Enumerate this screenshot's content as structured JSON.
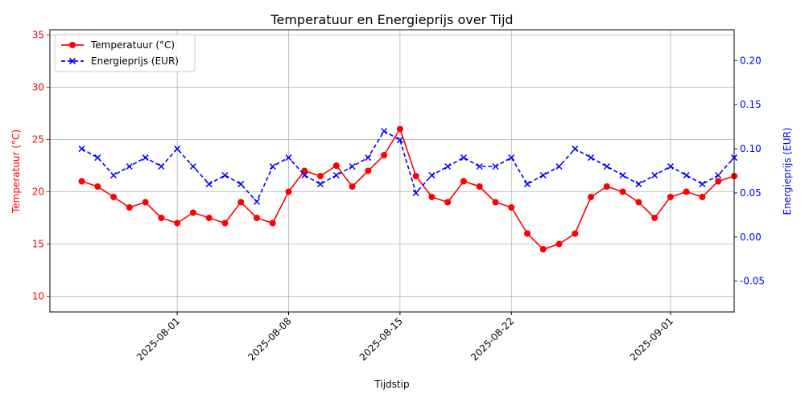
{
  "chart_data": {
    "type": "line",
    "title": "Temperatuur en Energieprijs over Tijd",
    "xlabel": "Tijdstip",
    "ylabel_left": "Temperatuur (°C)",
    "ylabel_right": "Energieprijs (EUR)",
    "x_range": [
      "2025-07-24",
      "2025-09-05"
    ],
    "x_ticks": [
      "2025-08-01",
      "2025-08-08",
      "2025-08-15",
      "2025-08-22",
      "2025-09-01"
    ],
    "ylim_left": [
      8.5,
      35.5
    ],
    "yticks_left": [
      10,
      15,
      20,
      25,
      30,
      35
    ],
    "ylim_right": [
      -0.085,
      0.235
    ],
    "yticks_right": [
      -0.05,
      0.0,
      0.05,
      0.1,
      0.15,
      0.2
    ],
    "grid": true,
    "legend_position": "top-left",
    "colors": {
      "temperature": "#ff0000",
      "price": "#0000ff",
      "grid": "#b0b0b0"
    },
    "series": [
      {
        "name": "Temperatuur (°C)",
        "axis": "left",
        "style": "solid line, circle markers",
        "x": [
          "2025-07-26",
          "2025-07-27",
          "2025-07-28",
          "2025-07-29",
          "2025-07-30",
          "2025-07-31",
          "2025-08-01",
          "2025-08-02",
          "2025-08-03",
          "2025-08-04",
          "2025-08-05",
          "2025-08-06",
          "2025-08-07",
          "2025-08-08",
          "2025-08-09",
          "2025-08-10",
          "2025-08-11",
          "2025-08-12",
          "2025-08-13",
          "2025-08-14",
          "2025-08-15",
          "2025-08-16",
          "2025-08-17",
          "2025-08-18",
          "2025-08-19",
          "2025-08-20",
          "2025-08-21",
          "2025-08-22",
          "2025-08-23",
          "2025-08-24",
          "2025-08-25",
          "2025-08-26",
          "2025-08-27",
          "2025-08-28",
          "2025-08-29",
          "2025-08-30",
          "2025-08-31",
          "2025-09-01",
          "2025-09-02",
          "2025-09-03",
          "2025-09-04",
          "2025-09-05"
        ],
        "values": [
          21.0,
          20.5,
          19.5,
          18.5,
          19.0,
          17.5,
          17.0,
          18.0,
          17.5,
          17.0,
          19.0,
          17.5,
          17.0,
          20.0,
          22.0,
          21.5,
          22.5,
          20.5,
          22.0,
          23.5,
          26.0,
          21.5,
          19.5,
          19.0,
          21.0,
          20.5,
          19.0,
          18.5,
          16.0,
          14.5,
          15.0,
          16.0,
          19.5,
          20.5,
          20.0,
          19.0,
          17.5,
          19.5,
          20.0,
          19.5,
          21.0,
          21.5
        ]
      },
      {
        "name": "Energieprijs (EUR)",
        "axis": "right",
        "style": "dashed line, x markers",
        "x": [
          "2025-07-26",
          "2025-07-27",
          "2025-07-28",
          "2025-07-29",
          "2025-07-30",
          "2025-07-31",
          "2025-08-01",
          "2025-08-02",
          "2025-08-03",
          "2025-08-04",
          "2025-08-05",
          "2025-08-06",
          "2025-08-07",
          "2025-08-08",
          "2025-08-09",
          "2025-08-10",
          "2025-08-11",
          "2025-08-12",
          "2025-08-13",
          "2025-08-14",
          "2025-08-15",
          "2025-08-16",
          "2025-08-17",
          "2025-08-18",
          "2025-08-19",
          "2025-08-20",
          "2025-08-21",
          "2025-08-22",
          "2025-08-23",
          "2025-08-24",
          "2025-08-25",
          "2025-08-26",
          "2025-08-27",
          "2025-08-28",
          "2025-08-29",
          "2025-08-30",
          "2025-08-31",
          "2025-09-01",
          "2025-09-02",
          "2025-09-03",
          "2025-09-04",
          "2025-09-05"
        ],
        "values": [
          0.1,
          0.09,
          0.07,
          0.08,
          0.09,
          0.08,
          0.1,
          0.08,
          0.06,
          0.07,
          0.06,
          0.04,
          0.08,
          0.09,
          0.07,
          0.06,
          0.07,
          0.08,
          0.09,
          0.12,
          0.11,
          0.05,
          0.07,
          0.08,
          0.09,
          0.08,
          0.08,
          0.09,
          0.06,
          0.07,
          0.08,
          0.1,
          0.09,
          0.08,
          0.07,
          0.06,
          0.07,
          0.08,
          0.07,
          0.06,
          0.07,
          0.09
        ]
      }
    ],
    "annotations": []
  }
}
